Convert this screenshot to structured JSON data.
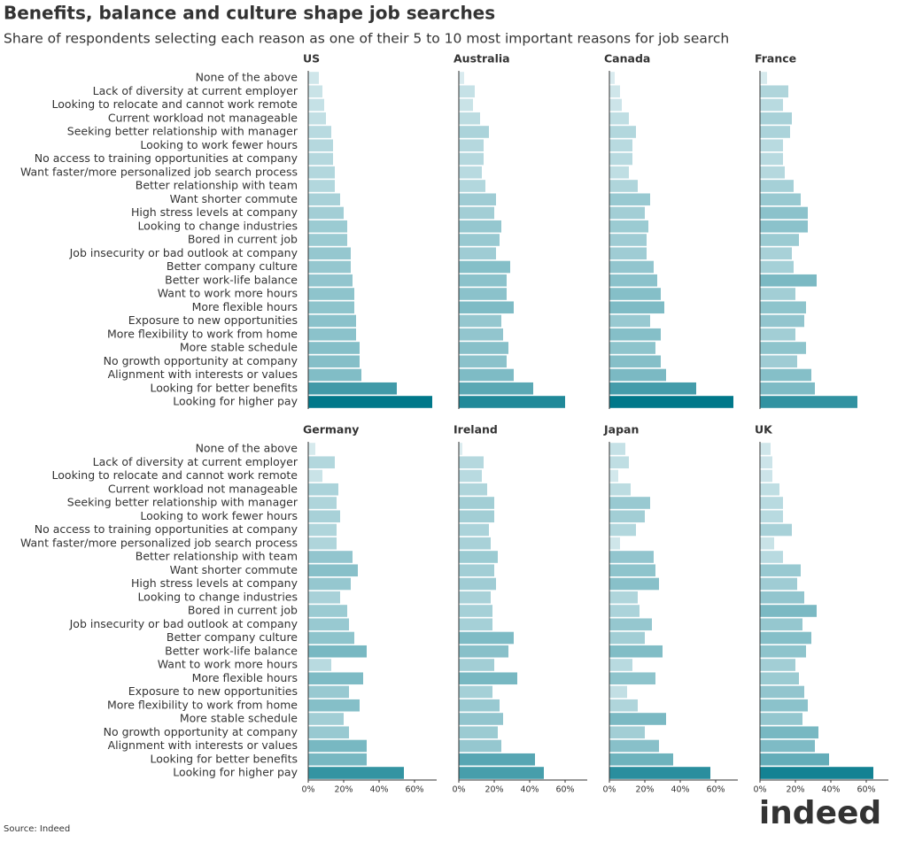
{
  "chart_data": {
    "type": "bar",
    "title": "Benefits, balance and culture shape job searches",
    "subtitle": "Share of respondents selecting each reason as one of their 5 to 10 most important reasons for job search",
    "source": "Source: Indeed",
    "logo": "indeed",
    "categories": [
      "None of the above",
      "Lack of diversity at current employer",
      "Looking to relocate and cannot work remote",
      "Current workload not manageable",
      "Seeking better relationship with manager",
      "Looking to work fewer hours",
      "No access to training opportunities at company",
      "Want faster/more personalized job search process",
      "Better relationship with team",
      "Want shorter commute",
      "High stress levels at company",
      "Looking to change industries",
      "Bored in current job",
      "Job insecurity or bad outlook at company",
      "Better company culture",
      "Better work-life balance",
      "Want to work more hours",
      "More flexible hours",
      "Exposure to new opportunities",
      "More flexibility to work from home",
      "More stable schedule",
      "No growth opportunity at company",
      "Alignment with interests or values",
      "Looking for better benefits",
      "Looking for higher pay"
    ],
    "series": [
      {
        "name": "US",
        "values": [
          6,
          8,
          9,
          10,
          13,
          14,
          14,
          15,
          15,
          18,
          20,
          22,
          22,
          24,
          24,
          25,
          26,
          26,
          27,
          27,
          29,
          29,
          30,
          50,
          70
        ]
      },
      {
        "name": "Australia",
        "values": [
          3,
          9,
          8,
          12,
          17,
          14,
          14,
          13,
          15,
          21,
          20,
          24,
          23,
          21,
          29,
          27,
          27,
          31,
          24,
          25,
          28,
          27,
          31,
          42,
          60
        ]
      },
      {
        "name": "Canada",
        "values": [
          3,
          6,
          7,
          11,
          15,
          13,
          13,
          11,
          16,
          23,
          20,
          22,
          21,
          21,
          25,
          27,
          29,
          31,
          23,
          29,
          26,
          29,
          32,
          49,
          70
        ]
      },
      {
        "name": "France",
        "values": [
          4,
          16,
          13,
          18,
          17,
          13,
          13,
          14,
          19,
          23,
          27,
          27,
          22,
          18,
          19,
          32,
          20,
          26,
          25,
          20,
          26,
          21,
          29,
          31,
          55
        ]
      },
      {
        "name": "Germany",
        "values": [
          4,
          15,
          8,
          17,
          16,
          18,
          16,
          16,
          25,
          28,
          24,
          18,
          22,
          23,
          26,
          33,
          13,
          31,
          23,
          29,
          20,
          23,
          33,
          33,
          54
        ]
      },
      {
        "name": "Ireland",
        "values": [
          2,
          14,
          13,
          16,
          20,
          20,
          17,
          18,
          22,
          20,
          21,
          18,
          19,
          19,
          31,
          28,
          20,
          33,
          19,
          23,
          25,
          22,
          24,
          43,
          48
        ]
      },
      {
        "name": "Japan",
        "values": [
          9,
          11,
          5,
          12,
          23,
          20,
          15,
          6,
          25,
          26,
          28,
          16,
          17,
          24,
          20,
          30,
          13,
          26,
          10,
          16,
          32,
          20,
          28,
          36,
          57
        ]
      },
      {
        "name": "UK",
        "values": [
          6,
          7,
          7,
          11,
          13,
          13,
          18,
          8,
          13,
          23,
          21,
          25,
          32,
          24,
          29,
          26,
          20,
          22,
          25,
          27,
          24,
          33,
          31,
          39,
          64
        ]
      }
    ],
    "xlim": [
      0,
      70
    ],
    "xticks": [
      {
        "value": 0,
        "label": "0%"
      },
      {
        "value": 20,
        "label": "20%"
      },
      {
        "value": 40,
        "label": "40%"
      },
      {
        "value": 60,
        "label": "60%"
      }
    ],
    "colors": [
      "#dcedf0",
      "#00788a"
    ]
  }
}
